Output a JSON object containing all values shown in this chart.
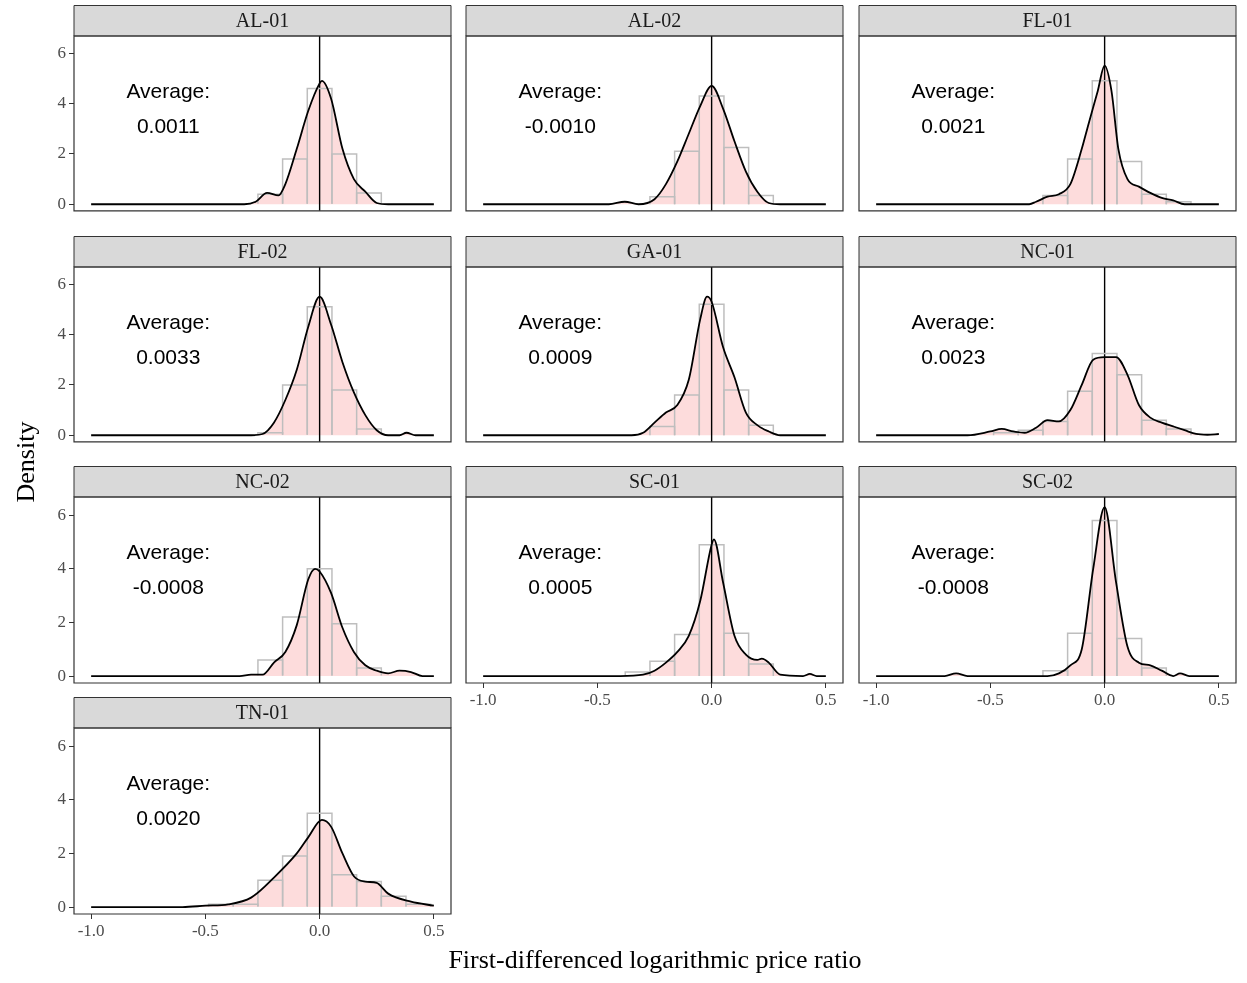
{
  "chart_data": [
    {
      "type": "histogram",
      "title": "AL-01",
      "bins": [
        -0.27,
        -0.162,
        -0.054,
        0.054,
        0.162,
        0.27
      ],
      "values": [
        0.4,
        1.8,
        4.6,
        2.0,
        0.45
      ],
      "color": "#bebebe",
      "series": [
        {
          "type": "area",
          "color": "#fddcdc",
          "x": [
            -1,
            -0.4,
            -0.33,
            -0.28,
            -0.23,
            -0.18,
            -0.15,
            -0.1,
            -0.05,
            0,
            0.01,
            0.05,
            0.1,
            0.15,
            0.2,
            0.25,
            0.3,
            0.5
          ],
          "values": [
            0,
            0,
            0,
            0.1,
            0.45,
            0.35,
            0.8,
            2.2,
            3.7,
            4.8,
            4.9,
            4.2,
            2.2,
            1.0,
            0.5,
            0.05,
            0,
            0
          ]
        }
      ],
      "xlim": [
        -1.075,
        0.575
      ],
      "ylim": [
        -0.26,
        6.68
      ],
      "yticks": [
        0,
        2,
        4,
        6
      ],
      "ref_lines": [
        {
          "axis": "x",
          "value": 0,
          "color": "#000000"
        }
      ],
      "annotations": [
        "Average:\n0.0011"
      ],
      "tick_labels": "y"
    },
    {
      "type": "histogram",
      "title": "AL-02",
      "bins": [
        -0.27,
        -0.162,
        -0.054,
        0.054,
        0.162,
        0.27
      ],
      "values": [
        0.3,
        2.1,
        4.3,
        2.25,
        0.35
      ],
      "color": "#bebebe",
      "series": [
        {
          "type": "area",
          "color": "#fddcdc",
          "x": [
            -1,
            -0.45,
            -0.38,
            -0.32,
            -0.25,
            -0.2,
            -0.15,
            -0.1,
            -0.05,
            0,
            0.05,
            0.1,
            0.15,
            0.2,
            0.25,
            0.3,
            0.5
          ],
          "values": [
            0,
            0,
            0.1,
            0,
            0.2,
            0.8,
            1.7,
            2.8,
            3.9,
            4.7,
            3.8,
            2.5,
            1.3,
            0.5,
            0.05,
            0,
            0
          ]
        }
      ],
      "xlim": [
        -1.075,
        0.575
      ],
      "ylim": [
        -0.26,
        6.68
      ],
      "ref_lines": [
        {
          "axis": "x",
          "value": 0,
          "color": "#000000"
        }
      ],
      "annotations": [
        "Average:\n-0.0010"
      ],
      "tick_labels": false
    },
    {
      "type": "histogram",
      "title": "FL-01",
      "bins": [
        -0.27,
        -0.162,
        -0.054,
        0.054,
        0.162,
        0.27,
        0.378
      ],
      "values": [
        0.35,
        1.8,
        4.9,
        1.7,
        0.4,
        0.1
      ],
      "color": "#bebebe",
      "series": [
        {
          "type": "area",
          "color": "#fddcdc",
          "x": [
            -1,
            -0.33,
            -0.3,
            -0.25,
            -0.2,
            -0.15,
            -0.1,
            -0.07,
            -0.03,
            0,
            0.03,
            0.06,
            0.1,
            0.15,
            0.2,
            0.25,
            0.3,
            0.35,
            0.5
          ],
          "values": [
            0,
            0,
            0.1,
            0.3,
            0.4,
            0.8,
            2.2,
            3.2,
            4.5,
            5.5,
            4.5,
            2.2,
            1.0,
            0.7,
            0.45,
            0.25,
            0.15,
            0,
            0
          ]
        }
      ],
      "xlim": [
        -1.075,
        0.575
      ],
      "ylim": [
        -0.26,
        6.68
      ],
      "ref_lines": [
        {
          "axis": "x",
          "value": 0,
          "color": "#000000"
        }
      ],
      "annotations": [
        "Average:\n0.0021"
      ],
      "tick_labels": false
    },
    {
      "type": "histogram",
      "title": "FL-02",
      "ylabel": "Density",
      "bins": [
        -0.27,
        -0.162,
        -0.054,
        0.054,
        0.162,
        0.27
      ],
      "values": [
        0.1,
        2.0,
        5.1,
        1.8,
        0.25
      ],
      "color": "#bebebe",
      "series": [
        {
          "type": "area",
          "color": "#fddcdc",
          "x": [
            -1,
            -0.3,
            -0.25,
            -0.2,
            -0.15,
            -0.1,
            -0.05,
            0,
            0.05,
            0.1,
            0.15,
            0.2,
            0.25,
            0.3,
            0.35,
            0.38,
            0.42,
            0.5
          ],
          "values": [
            0,
            0,
            0.05,
            0.5,
            1.4,
            2.6,
            4.3,
            5.5,
            4.4,
            2.9,
            1.7,
            0.8,
            0.2,
            0,
            0,
            0.1,
            0,
            0
          ]
        }
      ],
      "xlim": [
        -1.075,
        0.575
      ],
      "ylim": [
        -0.26,
        6.68
      ],
      "yticks": [
        0,
        2,
        4,
        6
      ],
      "ref_lines": [
        {
          "axis": "x",
          "value": 0,
          "color": "#000000"
        }
      ],
      "annotations": [
        "Average:\n0.0033"
      ],
      "tick_labels": "y"
    },
    {
      "type": "histogram",
      "title": "GA-01",
      "bins": [
        -0.27,
        -0.162,
        -0.054,
        0.054,
        0.162,
        0.27
      ],
      "values": [
        0.35,
        1.6,
        5.2,
        1.8,
        0.4
      ],
      "color": "#bebebe",
      "series": [
        {
          "type": "area",
          "color": "#fddcdc",
          "x": [
            -1,
            -0.35,
            -0.3,
            -0.25,
            -0.2,
            -0.15,
            -0.1,
            -0.05,
            -0.02,
            0,
            0.05,
            0.1,
            0.15,
            0.2,
            0.25,
            0.3,
            0.5
          ],
          "values": [
            0,
            0,
            0.1,
            0.5,
            0.9,
            1.2,
            2.2,
            4.6,
            5.5,
            5.3,
            3.5,
            2.3,
            0.9,
            0.4,
            0.15,
            0,
            0
          ]
        }
      ],
      "xlim": [
        -1.075,
        0.575
      ],
      "ylim": [
        -0.26,
        6.68
      ],
      "ref_lines": [
        {
          "axis": "x",
          "value": 0,
          "color": "#000000"
        }
      ],
      "annotations": [
        "Average:\n0.0009"
      ],
      "tick_labels": false
    },
    {
      "type": "histogram",
      "title": "NC-01",
      "bins": [
        -0.486,
        -0.378,
        -0.27,
        -0.162,
        -0.054,
        0.054,
        0.162,
        0.27,
        0.378
      ],
      "values": [
        0.1,
        0.2,
        0.55,
        1.75,
        3.25,
        2.4,
        0.6,
        0.25
      ],
      "color": "#bebebe",
      "series": [
        {
          "type": "area",
          "color": "#fddcdc",
          "x": [
            -1,
            -0.6,
            -0.5,
            -0.45,
            -0.4,
            -0.35,
            -0.3,
            -0.25,
            -0.2,
            -0.15,
            -0.1,
            -0.05,
            0,
            0.05,
            0.1,
            0.15,
            0.2,
            0.25,
            0.3,
            0.35,
            0.4,
            0.45,
            0.5
          ],
          "values": [
            0,
            0,
            0.15,
            0.25,
            0.15,
            0.1,
            0.3,
            0.6,
            0.55,
            1.0,
            2.0,
            3.0,
            3.1,
            3.1,
            2.4,
            1.2,
            0.7,
            0.5,
            0.35,
            0.2,
            0.05,
            0.02,
            0.05
          ]
        }
      ],
      "xlim": [
        -1.075,
        0.575
      ],
      "ylim": [
        -0.26,
        6.68
      ],
      "ref_lines": [
        {
          "axis": "x",
          "value": 0,
          "color": "#000000"
        }
      ],
      "annotations": [
        "Average:\n0.0023"
      ],
      "tick_labels": false
    },
    {
      "type": "histogram",
      "title": "NC-02",
      "bins": [
        -0.27,
        -0.162,
        -0.054,
        0.054,
        0.162,
        0.27
      ],
      "values": [
        0.6,
        2.2,
        4.0,
        1.95,
        0.3
      ],
      "color": "#bebebe",
      "series": [
        {
          "type": "area",
          "color": "#fddcdc",
          "x": [
            -1,
            -0.35,
            -0.3,
            -0.25,
            -0.2,
            -0.15,
            -0.1,
            -0.05,
            -0.02,
            0,
            0.05,
            0.1,
            0.15,
            0.2,
            0.25,
            0.3,
            0.35,
            0.4,
            0.45,
            0.5
          ],
          "values": [
            0,
            0,
            0.05,
            0.05,
            0.5,
            0.9,
            1.9,
            3.6,
            4.0,
            3.9,
            3.1,
            1.8,
            0.9,
            0.4,
            0.2,
            0.1,
            0.2,
            0.15,
            0,
            0
          ]
        }
      ],
      "xlim": [
        -1.075,
        0.575
      ],
      "ylim": [
        -0.26,
        6.68
      ],
      "yticks": [
        0,
        2,
        4,
        6
      ],
      "ref_lines": [
        {
          "axis": "x",
          "value": 0,
          "color": "#000000"
        }
      ],
      "annotations": [
        "Average:\n-0.0008"
      ],
      "tick_labels": "y"
    },
    {
      "type": "histogram",
      "title": "SC-01",
      "xlabel": "First-differenced logarithmic price ratio",
      "bins": [
        -0.378,
        -0.27,
        -0.162,
        -0.054,
        0.054,
        0.162,
        0.27
      ],
      "values": [
        0.15,
        0.55,
        1.55,
        4.9,
        1.6,
        0.45
      ],
      "color": "#bebebe",
      "series": [
        {
          "type": "area",
          "color": "#fddcdc",
          "x": [
            -1,
            -0.4,
            -0.3,
            -0.25,
            -0.2,
            -0.15,
            -0.1,
            -0.05,
            0,
            0.01,
            0.05,
            0.1,
            0.15,
            0.2,
            0.22,
            0.25,
            0.3,
            0.4,
            0.43,
            0.46,
            0.5
          ],
          "values": [
            0,
            0,
            0.05,
            0.2,
            0.5,
            0.9,
            1.5,
            2.8,
            4.9,
            5.1,
            3.5,
            1.5,
            0.8,
            0.6,
            0.65,
            0.5,
            0.05,
            0,
            0.08,
            0,
            0
          ]
        }
      ],
      "xlim": [
        -1.075,
        0.575
      ],
      "xticks": [
        {
          "value": -1,
          "label": "-1.0"
        },
        {
          "value": -0.5,
          "label": "-0.5"
        },
        {
          "value": 0,
          "label": "0.0"
        },
        {
          "value": 0.5,
          "label": "0.5"
        }
      ],
      "ylim": [
        -0.26,
        6.68
      ],
      "ref_lines": [
        {
          "axis": "x",
          "value": 0,
          "color": "#000000"
        }
      ],
      "annotations": [
        "Average:\n0.0005"
      ],
      "tick_labels": "x"
    },
    {
      "type": "histogram",
      "title": "SC-02",
      "bins": [
        -0.27,
        -0.162,
        -0.054,
        0.054,
        0.162,
        0.27
      ],
      "values": [
        0.2,
        1.6,
        5.8,
        1.4,
        0.3
      ],
      "color": "#bebebe",
      "series": [
        {
          "type": "area",
          "color": "#fddcdc",
          "x": [
            -1,
            -0.7,
            -0.65,
            -0.6,
            -0.25,
            -0.2,
            -0.15,
            -0.1,
            -0.05,
            0,
            0.05,
            0.1,
            0.15,
            0.2,
            0.25,
            0.3,
            0.33,
            0.37,
            0.5
          ],
          "values": [
            0,
            0,
            0.1,
            0,
            0,
            0.1,
            0.4,
            1.0,
            4.0,
            6.3,
            3.5,
            1.1,
            0.5,
            0.4,
            0.2,
            0,
            0.1,
            0,
            0
          ]
        }
      ],
      "xlim": [
        -1.075,
        0.575
      ],
      "xticks": [
        {
          "value": -1,
          "label": "-1.0"
        },
        {
          "value": -0.5,
          "label": "-0.5"
        },
        {
          "value": 0,
          "label": "0.0"
        },
        {
          "value": 0.5,
          "label": "0.5"
        }
      ],
      "ylim": [
        -0.26,
        6.68
      ],
      "ref_lines": [
        {
          "axis": "x",
          "value": 0,
          "color": "#000000"
        }
      ],
      "annotations": [
        "Average:\n-0.0008"
      ],
      "tick_labels": "x"
    },
    {
      "type": "histogram",
      "title": "TN-01",
      "bins": [
        -0.486,
        -0.378,
        -0.27,
        -0.162,
        -0.054,
        0.054,
        0.162,
        0.27,
        0.378,
        0.486
      ],
      "values": [
        0.1,
        0.1,
        1.0,
        1.9,
        3.5,
        1.2,
        0.95,
        0.4,
        0.1
      ],
      "color": "#bebebe",
      "series": [
        {
          "type": "area",
          "color": "#fddcdc",
          "x": [
            -1,
            -0.6,
            -0.5,
            -0.4,
            -0.3,
            -0.2,
            -0.1,
            -0.05,
            0.01,
            0.05,
            0.1,
            0.15,
            0.2,
            0.25,
            0.3,
            0.4,
            0.5
          ],
          "values": [
            0,
            0,
            0.05,
            0.1,
            0.35,
            1.1,
            2.0,
            2.6,
            3.25,
            3.0,
            2.0,
            1.15,
            0.95,
            0.9,
            0.5,
            0.2,
            0.05
          ]
        }
      ],
      "xlim": [
        -1.075,
        0.575
      ],
      "xticks": [
        {
          "value": -1,
          "label": "-1.0"
        },
        {
          "value": -0.5,
          "label": "-0.5"
        },
        {
          "value": 0,
          "label": "0.0"
        },
        {
          "value": 0.5,
          "label": "0.5"
        }
      ],
      "ylim": [
        -0.26,
        6.68
      ],
      "yticks": [
        0,
        2,
        4,
        6
      ],
      "ref_lines": [
        {
          "axis": "x",
          "value": 0,
          "color": "#000000"
        }
      ],
      "annotations": [
        "Average:\n0.0020"
      ]
    }
  ]
}
